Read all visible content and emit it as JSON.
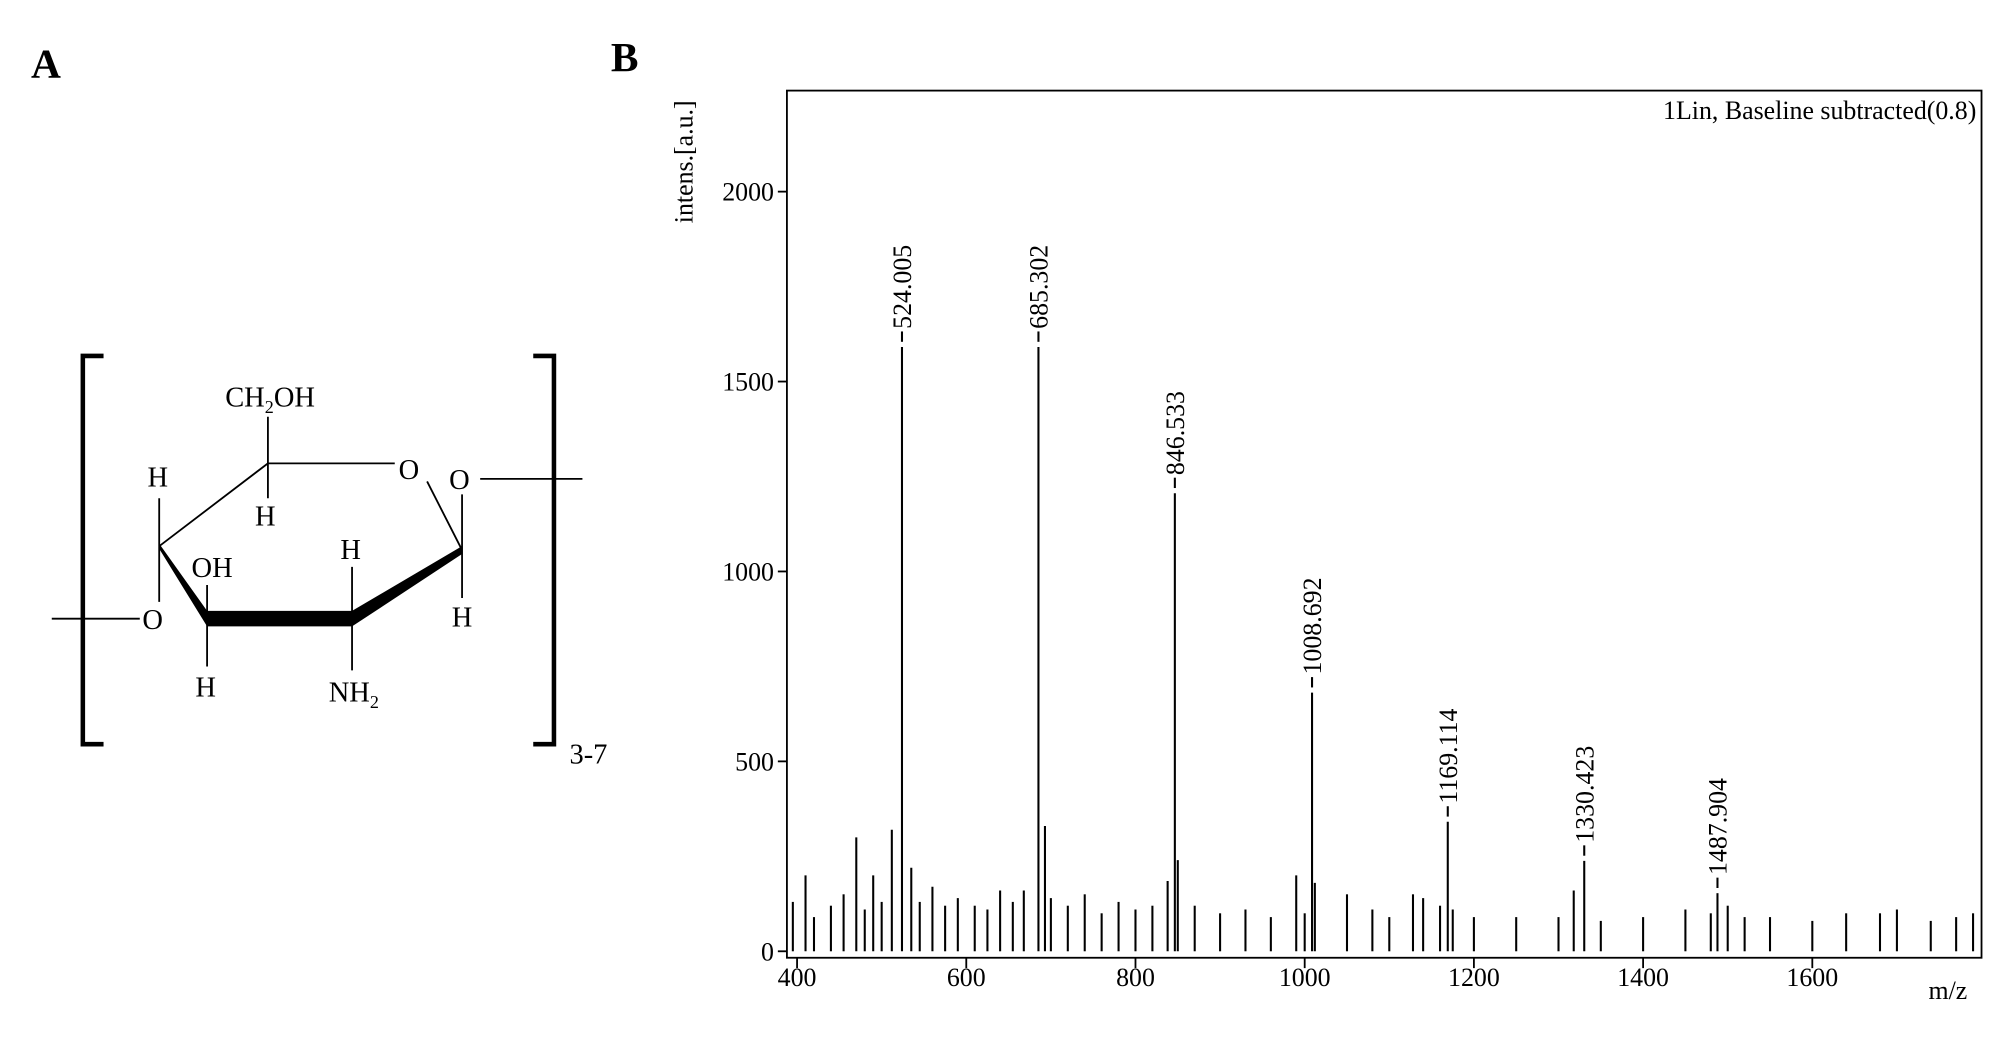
{
  "panels": {
    "a": "A",
    "b": "B"
  },
  "structure": {
    "atoms": [
      "CH",
      "2",
      "OH",
      "H",
      "O",
      "O",
      "H",
      "H",
      "O",
      "OH",
      "H",
      "H",
      "NH",
      "2"
    ],
    "repeat": "3-7"
  },
  "chart_data": {
    "type": "stem",
    "annotation": "1Lin, Baseline subtracted(0.8)",
    "xlabel": "m/z",
    "ylabel": "intens.[a.u.]",
    "xlim": [
      388,
      1800
    ],
    "ylim": [
      0,
      2266
    ],
    "xticks": [
      400,
      600,
      800,
      1000,
      1200,
      1400,
      1600
    ],
    "yticks": [
      0,
      500,
      1000,
      1500,
      2000
    ],
    "color": "#000000",
    "peaks": {
      "x": [
        524.005,
        685.302,
        846.533,
        1008.692,
        1169.114,
        1330.423,
        1487.904
      ],
      "values": [
        1591,
        1591,
        1206,
        681,
        341,
        238,
        153
      ]
    },
    "x": [
      395,
      410,
      420,
      440,
      455,
      470,
      480,
      490,
      500,
      512,
      535,
      545,
      560,
      575,
      590,
      610,
      625,
      640,
      655,
      668,
      693,
      700,
      720,
      740,
      760,
      780,
      800,
      820,
      838,
      850,
      870,
      900,
      930,
      960,
      990,
      1000,
      1012,
      1050,
      1080,
      1100,
      1128,
      1140,
      1160,
      1175,
      1200,
      1250,
      1300,
      1318,
      1350,
      1400,
      1450,
      1480,
      1500,
      1520,
      1550,
      1600,
      1640,
      1680,
      1700,
      1740,
      1770,
      1790
    ],
    "values": [
      130,
      200,
      90,
      120,
      150,
      300,
      110,
      200,
      130,
      320,
      220,
      130,
      170,
      120,
      140,
      120,
      110,
      160,
      130,
      160,
      330,
      140,
      120,
      150,
      100,
      130,
      110,
      120,
      185,
      240,
      120,
      100,
      110,
      90,
      200,
      100,
      180,
      150,
      110,
      90,
      150,
      140,
      120,
      110,
      90,
      90,
      90,
      160,
      80,
      90,
      110,
      100,
      120,
      90,
      90,
      80,
      100,
      100,
      110,
      80,
      90,
      100
    ]
  }
}
